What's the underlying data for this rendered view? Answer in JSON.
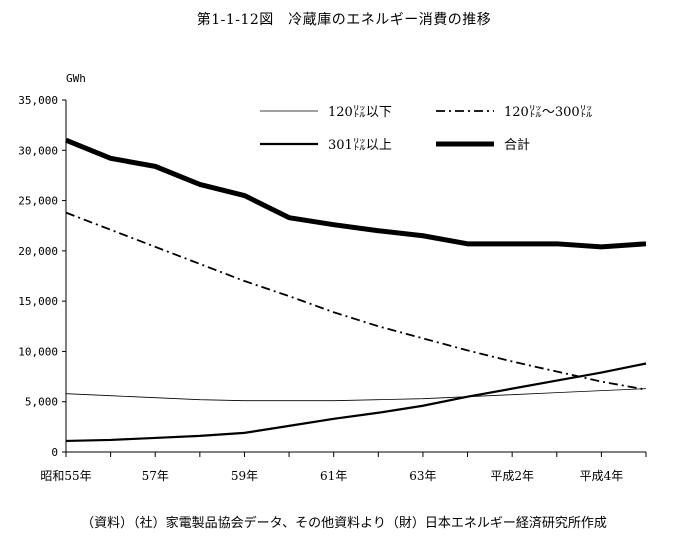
{
  "title": "第1-1-12図　冷蔵庫のエネルギー消費の推移",
  "source": "（資料）（社）家電製品協会データ、その他資料より（財）日本エネルギー経済研究所作成",
  "chart_data": {
    "type": "line",
    "ylabel": "GWh",
    "ylim": [
      0,
      35000
    ],
    "yticks": [
      0,
      5000,
      10000,
      15000,
      20000,
      25000,
      30000,
      35000
    ],
    "ytick_labels": [
      "0",
      "5,000",
      "10,000",
      "15,000",
      "20,000",
      "25,000",
      "30,000",
      "35,000"
    ],
    "x": [
      55,
      56,
      57,
      58,
      59,
      60,
      61,
      62,
      63,
      64,
      65,
      66,
      67,
      68
    ],
    "xtick_positions": [
      55,
      57,
      59,
      61,
      63,
      65,
      67
    ],
    "xtick_labels": [
      "昭和55年",
      "57年",
      "59年",
      "61年",
      "63年",
      "平成2年",
      "平成4年"
    ],
    "grid": false,
    "legend_placement": "top-right",
    "series": [
      {
        "name": "120㍑以下",
        "style": "thin",
        "values": [
          5800,
          5600,
          5400,
          5200,
          5100,
          5100,
          5100,
          5200,
          5300,
          5500,
          5700,
          5900,
          6100,
          6300
        ]
      },
      {
        "name": "120㍑～300㍑",
        "style": "dashdot",
        "values": [
          23800,
          22100,
          20400,
          18700,
          17000,
          15500,
          13900,
          12500,
          11300,
          10100,
          9000,
          8000,
          7000,
          6200
        ]
      },
      {
        "name": "301㍑以上",
        "style": "medium",
        "values": [
          1100,
          1200,
          1400,
          1600,
          1900,
          2600,
          3300,
          3900,
          4600,
          5500,
          6300,
          7100,
          7900,
          8800
        ]
      },
      {
        "name": "合計",
        "style": "thick",
        "values": [
          31000,
          29200,
          28400,
          26600,
          25500,
          23300,
          22600,
          22000,
          21500,
          20700,
          20700,
          20700,
          20400,
          20700
        ]
      }
    ]
  }
}
